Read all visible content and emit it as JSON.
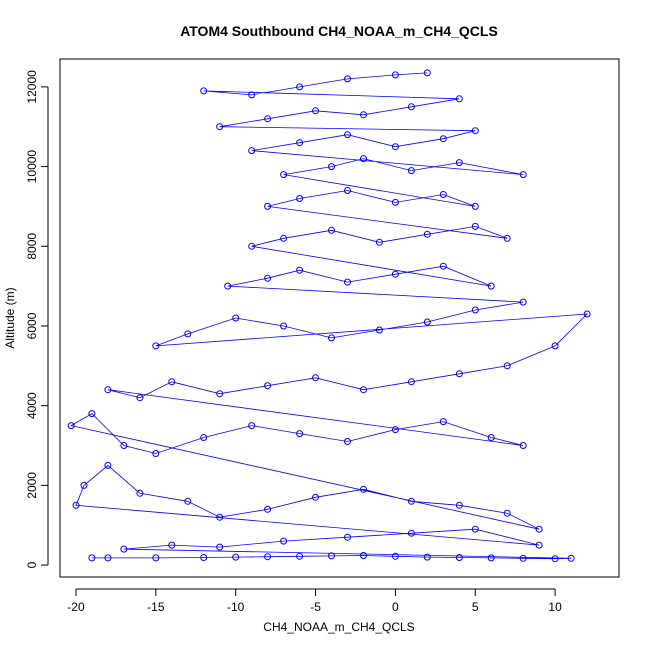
{
  "chart_data": {
    "type": "scatter",
    "title": "ATOM4 Southbound CH4_NOAA_m_CH4_QCLS",
    "xlabel": "CH4_NOAA_m_CH4_QCLS",
    "ylabel": "Altitude (m)",
    "xlim": [
      -21,
      14
    ],
    "ylim": [
      -300,
      12700
    ],
    "x_ticks": [
      -20,
      -15,
      -10,
      -5,
      0,
      5,
      10
    ],
    "x_tick_labels": [
      "-20",
      "-15",
      "-10",
      "-5",
      "0",
      "5",
      "10"
    ],
    "y_ticks": [
      0,
      2000,
      4000,
      6000,
      8000,
      10000,
      12000
    ],
    "y_tick_labels": [
      "0",
      "2000",
      "4000",
      "6000",
      "8000",
      "10000",
      "12000"
    ],
    "grid": false,
    "legend": "none",
    "series": [
      {
        "style": "points-and-lines",
        "color": "#0000ff",
        "marker": "open-circle",
        "x": [
          -19,
          -18,
          -15,
          -12,
          -10,
          -8,
          -6,
          -4,
          -2,
          0,
          2,
          4,
          6,
          8,
          10,
          11,
          -17,
          -14,
          -11,
          -7,
          -3,
          1,
          5,
          9,
          -20,
          -19.5,
          -18,
          -16,
          -13,
          -11,
          -8,
          -5,
          -2,
          1,
          4,
          7,
          9,
          -20.3,
          -19,
          -17,
          -15,
          -12,
          -9,
          -6,
          -3,
          0,
          3,
          6,
          8,
          -18,
          -16,
          -14,
          -11,
          -8,
          -5,
          -2,
          1,
          4,
          7,
          10,
          12,
          -15,
          -13,
          -10,
          -7,
          -4,
          -1,
          2,
          5,
          8,
          -10.5,
          -8,
          -6,
          -3,
          0,
          3,
          6,
          -9,
          -7,
          -4,
          -1,
          2,
          5,
          7,
          -8,
          -6,
          -3,
          0,
          3,
          5,
          -7,
          -4,
          -2,
          1,
          4,
          8,
          -9,
          -6,
          -3,
          0,
          3,
          5,
          -11,
          -8,
          -5,
          -2,
          1,
          4,
          -12,
          -9,
          -6,
          -3,
          0,
          2
        ],
        "y": [
          180,
          180,
          180,
          190,
          200,
          210,
          220,
          230,
          240,
          220,
          200,
          190,
          180,
          170,
          160,
          170,
          400,
          500,
          450,
          600,
          700,
          800,
          900,
          500,
          1500,
          2000,
          2500,
          1800,
          1600,
          1200,
          1400,
          1700,
          1900,
          1600,
          1500,
          1300,
          900,
          3500,
          3800,
          3000,
          2800,
          3200,
          3500,
          3300,
          3100,
          3400,
          3600,
          3200,
          3000,
          4400,
          4200,
          4600,
          4300,
          4500,
          4700,
          4400,
          4600,
          4800,
          5000,
          5500,
          6300,
          5500,
          5800,
          6200,
          6000,
          5700,
          5900,
          6100,
          6400,
          6600,
          7000,
          7200,
          7400,
          7100,
          7300,
          7500,
          7000,
          8000,
          8200,
          8400,
          8100,
          8300,
          8500,
          8200,
          9000,
          9200,
          9400,
          9100,
          9300,
          9000,
          9800,
          10000,
          10200,
          9900,
          10100,
          9800,
          10400,
          10600,
          10800,
          10500,
          10700,
          10900,
          11000,
          11200,
          11400,
          11300,
          11500,
          11700,
          11900,
          11800,
          12000,
          12200,
          12300,
          12350
        ]
      }
    ]
  }
}
